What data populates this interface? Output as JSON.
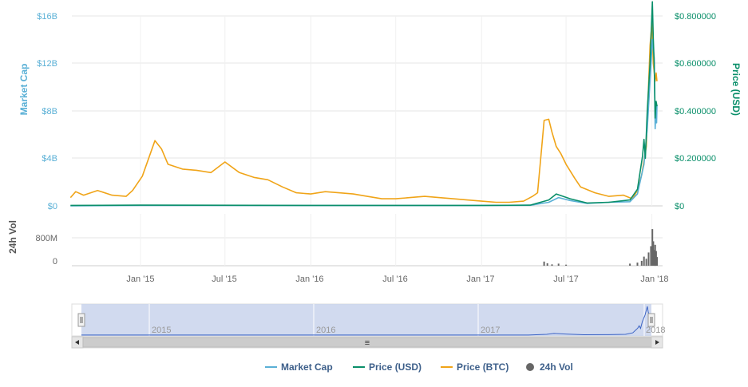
{
  "chart_data": {
    "type": "line",
    "x_ticks": [
      "Jan '15",
      "Jul '15",
      "Jan '16",
      "Jul '16",
      "Jan '17",
      "Jul '17",
      "Jan '18"
    ],
    "axes": {
      "market_cap": {
        "title": "Market Cap",
        "ticks": [
          "$0",
          "$4B",
          "$8B",
          "$12B",
          "$16B"
        ],
        "ylim": [
          0,
          16000000000
        ]
      },
      "price_usd": {
        "title": "Price (USD)",
        "ticks": [
          "$0",
          "$0.200000",
          "$0.400000",
          "$0.600000",
          "$0.800000"
        ],
        "ylim": [
          0,
          0.8
        ]
      },
      "volume": {
        "title": "24h Vol",
        "ticks": [
          "0",
          "800M"
        ]
      }
    },
    "navigator_years": [
      "2015",
      "2016",
      "2017",
      "2018"
    ],
    "legend_position": "bottom-center",
    "grid": true,
    "series": [
      {
        "name": "Market Cap",
        "color": "#5ab0d6",
        "axis": "market_cap",
        "points": [
          [
            "2014-08-04",
            0
          ],
          [
            "2015-01-01",
            0.04
          ],
          [
            "2016-01-01",
            0.03
          ],
          [
            "2017-01-01",
            0.03
          ],
          [
            "2017-04-15",
            0.05
          ],
          [
            "2017-05-25",
            0.3
          ],
          [
            "2017-06-15",
            0.7
          ],
          [
            "2017-07-10",
            0.45
          ],
          [
            "2017-08-15",
            0.2
          ],
          [
            "2017-10-01",
            0.3
          ],
          [
            "2017-11-15",
            0.35
          ],
          [
            "2017-12-01",
            1.0
          ],
          [
            "2017-12-15",
            3.5
          ],
          [
            "2017-12-22",
            6.5
          ],
          [
            "2017-12-28",
            10.5
          ],
          [
            "2018-01-02",
            14.0
          ],
          [
            "2018-01-06",
            12.5
          ],
          [
            "2018-01-08",
            6.5
          ],
          [
            "2018-01-10",
            8.5
          ],
          [
            "2018-01-11",
            7.0
          ],
          [
            "2018-01-12",
            8.5
          ]
        ]
      },
      {
        "name": "Price (USD)",
        "color": "#0a8f6a",
        "axis": "price_usd",
        "points": [
          [
            "2014-08-04",
            0.002
          ],
          [
            "2015-01-01",
            0.003
          ],
          [
            "2016-01-01",
            0.002
          ],
          [
            "2017-01-01",
            0.002
          ],
          [
            "2017-04-15",
            0.003
          ],
          [
            "2017-05-25",
            0.025
          ],
          [
            "2017-06-10",
            0.05
          ],
          [
            "2017-07-10",
            0.03
          ],
          [
            "2017-08-15",
            0.012
          ],
          [
            "2017-10-01",
            0.015
          ],
          [
            "2017-11-15",
            0.025
          ],
          [
            "2017-12-01",
            0.07
          ],
          [
            "2017-12-12",
            0.21
          ],
          [
            "2017-12-15",
            0.28
          ],
          [
            "2017-12-18",
            0.2
          ],
          [
            "2017-12-22",
            0.4
          ],
          [
            "2017-12-28",
            0.6
          ],
          [
            "2018-01-02",
            0.86
          ],
          [
            "2018-01-04",
            0.7
          ],
          [
            "2018-01-06",
            0.6
          ],
          [
            "2018-01-08",
            0.37
          ],
          [
            "2018-01-10",
            0.44
          ],
          [
            "2018-01-12",
            0.42
          ]
        ]
      },
      {
        "name": "Price (BTC)",
        "color": "#f0a418",
        "axis": "market_cap",
        "points": [
          [
            "2014-08-04",
            0.7
          ],
          [
            "2014-08-15",
            1.2
          ],
          [
            "2014-09-01",
            0.9
          ],
          [
            "2014-10-01",
            1.3
          ],
          [
            "2014-11-01",
            0.9
          ],
          [
            "2014-12-01",
            0.8
          ],
          [
            "2014-12-15",
            1.3
          ],
          [
            "2015-01-05",
            2.5
          ],
          [
            "2015-02-01",
            5.5
          ],
          [
            "2015-02-15",
            4.8
          ],
          [
            "2015-03-01",
            3.5
          ],
          [
            "2015-04-01",
            3.1
          ],
          [
            "2015-05-01",
            3.0
          ],
          [
            "2015-06-01",
            2.8
          ],
          [
            "2015-07-01",
            3.7
          ],
          [
            "2015-08-01",
            2.8
          ],
          [
            "2015-09-01",
            2.4
          ],
          [
            "2015-10-01",
            2.2
          ],
          [
            "2015-11-01",
            1.6
          ],
          [
            "2015-12-01",
            1.1
          ],
          [
            "2016-01-01",
            1.0
          ],
          [
            "2016-02-01",
            1.2
          ],
          [
            "2016-03-01",
            1.1
          ],
          [
            "2016-04-01",
            1.0
          ],
          [
            "2016-05-01",
            0.8
          ],
          [
            "2016-06-01",
            0.6
          ],
          [
            "2016-07-01",
            0.6
          ],
          [
            "2016-08-01",
            0.7
          ],
          [
            "2016-09-01",
            0.8
          ],
          [
            "2016-10-01",
            0.7
          ],
          [
            "2016-11-01",
            0.6
          ],
          [
            "2016-12-01",
            0.5
          ],
          [
            "2017-01-01",
            0.4
          ],
          [
            "2017-02-01",
            0.3
          ],
          [
            "2017-03-01",
            0.3
          ],
          [
            "2017-04-01",
            0.4
          ],
          [
            "2017-04-20",
            0.8
          ],
          [
            "2017-05-01",
            1.1
          ],
          [
            "2017-05-10",
            5.0
          ],
          [
            "2017-05-15",
            7.2
          ],
          [
            "2017-05-25",
            7.3
          ],
          [
            "2017-06-01",
            6.2
          ],
          [
            "2017-06-10",
            5.0
          ],
          [
            "2017-06-20",
            4.4
          ],
          [
            "2017-07-01",
            3.5
          ],
          [
            "2017-07-20",
            2.3
          ],
          [
            "2017-08-01",
            1.6
          ],
          [
            "2017-09-01",
            1.1
          ],
          [
            "2017-10-01",
            0.8
          ],
          [
            "2017-11-01",
            0.9
          ],
          [
            "2017-11-20",
            0.6
          ],
          [
            "2017-12-01",
            1.3
          ],
          [
            "2017-12-10",
            2.6
          ],
          [
            "2017-12-20",
            5.0
          ],
          [
            "2017-12-28",
            13.5
          ],
          [
            "2018-01-01",
            15.4
          ],
          [
            "2018-01-04",
            12.0
          ],
          [
            "2018-01-08",
            10.5
          ],
          [
            "2018-01-10",
            11.2
          ],
          [
            "2018-01-12",
            10.5
          ]
        ]
      },
      {
        "name": "24h Vol",
        "color": "#666666",
        "axis": "volume",
        "points": [
          [
            "2017-05-15",
            120
          ],
          [
            "2017-05-22",
            70
          ],
          [
            "2017-06-01",
            40
          ],
          [
            "2017-06-15",
            60
          ],
          [
            "2017-07-01",
            30
          ],
          [
            "2017-11-15",
            60
          ],
          [
            "2017-12-01",
            90
          ],
          [
            "2017-12-10",
            140
          ],
          [
            "2017-12-15",
            260
          ],
          [
            "2017-12-20",
            200
          ],
          [
            "2017-12-25",
            380
          ],
          [
            "2017-12-30",
            560
          ],
          [
            "2018-01-02",
            1050
          ],
          [
            "2018-01-04",
            700
          ],
          [
            "2018-01-06",
            450
          ],
          [
            "2018-01-08",
            600
          ],
          [
            "2018-01-10",
            420
          ],
          [
            "2018-01-12",
            250
          ]
        ]
      }
    ]
  },
  "legend": [
    {
      "label": "Market Cap",
      "color": "#5ab0d6",
      "marker": "line"
    },
    {
      "label": "Price (USD)",
      "color": "#0a8f6a",
      "marker": "line"
    },
    {
      "label": "Price (BTC)",
      "color": "#f0a418",
      "marker": "line"
    },
    {
      "label": "24h Vol",
      "color": "#666666",
      "marker": "dot"
    }
  ],
  "navigator": {
    "scroll_grip": "≡"
  }
}
